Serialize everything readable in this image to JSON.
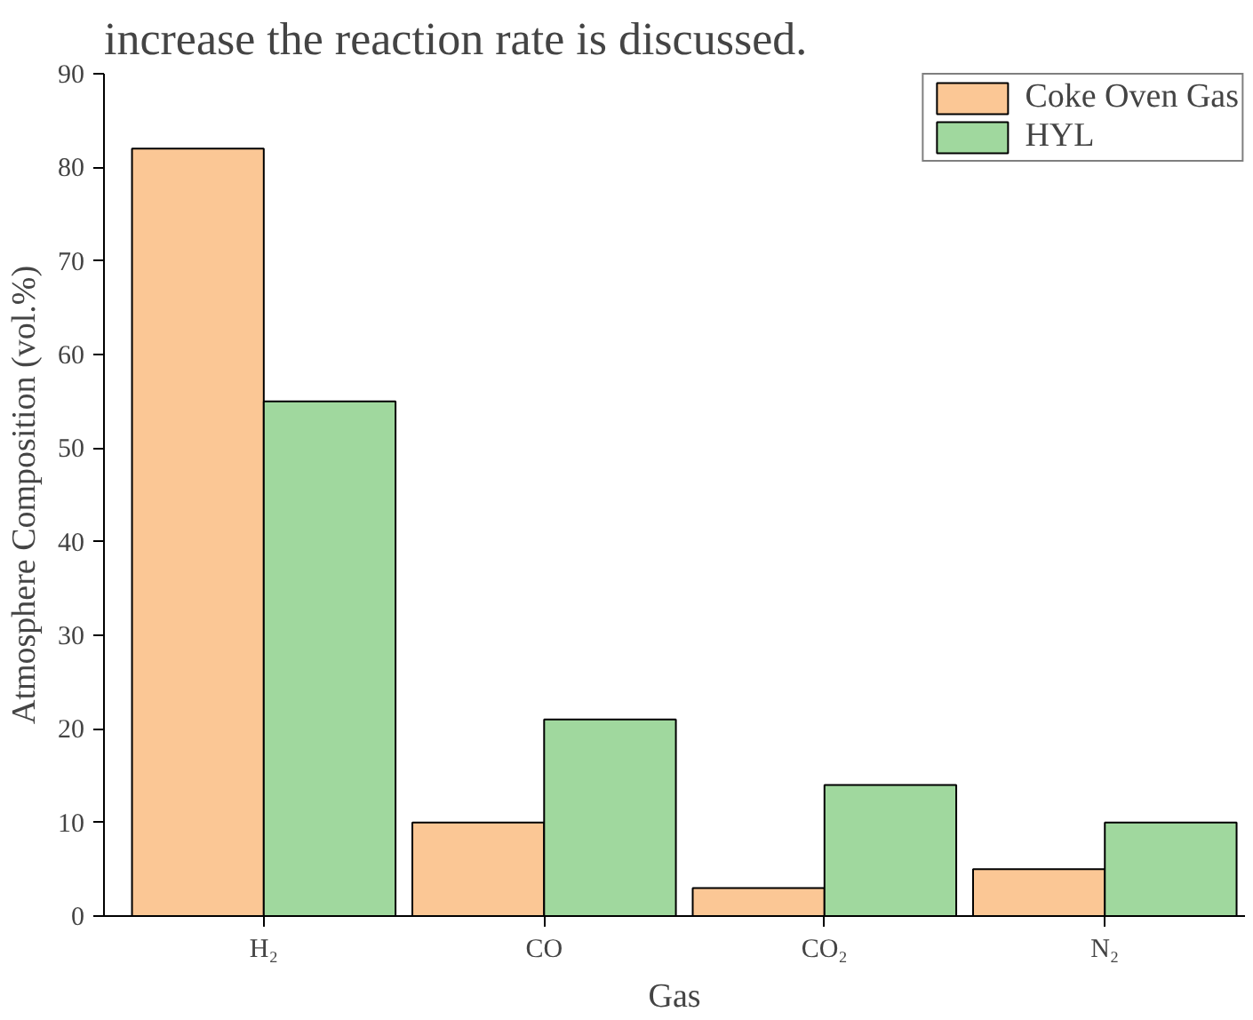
{
  "chart_data": {
    "type": "bar",
    "xlabel": "Gas",
    "ylabel": "Atmosphere Composition (vol.%)",
    "annotations": [
      "increase the reaction rate is discussed."
    ],
    "categories": [
      "H₂",
      "CO",
      "CO₂",
      "N₂"
    ],
    "series": [
      {
        "name": "Coke Oven Gas",
        "color": "#fbc795",
        "values": [
          82,
          10,
          3,
          5
        ]
      },
      {
        "name": "HYL",
        "color": "#a0d89e",
        "values": [
          55,
          21,
          14,
          10
        ]
      }
    ],
    "ylim": [
      0,
      90
    ],
    "yticks": [
      0,
      10,
      20,
      30,
      40,
      50,
      60,
      70,
      80,
      90
    ],
    "grid": false,
    "legend": "top right"
  }
}
